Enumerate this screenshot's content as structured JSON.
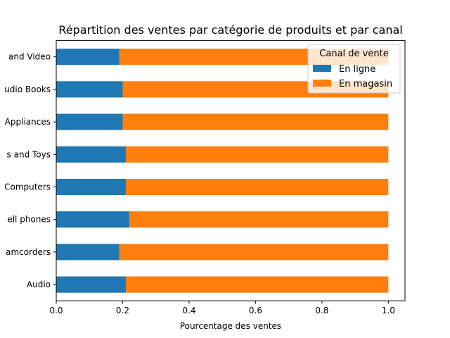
{
  "chart_data": {
    "type": "bar",
    "orientation": "horizontal",
    "stacked": true,
    "title": "Répartition des ventes par catégorie de produits et par canal",
    "xlabel": "Pourcentage des ventes",
    "ylabel": "",
    "xlim": [
      0,
      1.05
    ],
    "xticks": [
      0.0,
      0.2,
      0.4,
      0.6,
      0.8,
      1.0
    ],
    "xtick_labels": [
      "0.0",
      "0.2",
      "0.4",
      "0.6",
      "0.8",
      "1.0"
    ],
    "categories": [
      "Audio",
      "Camcorders",
      "Cell phones",
      "Computers",
      "Games and Toys",
      "Home Appliances",
      "Movies and Audio Books",
      "TV and Video"
    ],
    "category_labels_visible": [
      "Audio",
      "amcorders",
      "ell phones",
      "Computers",
      "s and Toys",
      "Appliances",
      "udio Books",
      "and Video"
    ],
    "series": [
      {
        "name": "En ligne",
        "color": "#1f77b4",
        "values": [
          0.21,
          0.19,
          0.22,
          0.21,
          0.21,
          0.2,
          0.2,
          0.19
        ]
      },
      {
        "name": "En magasin",
        "color": "#ff7f0e",
        "values": [
          0.79,
          0.81,
          0.78,
          0.79,
          0.79,
          0.8,
          0.8,
          0.81
        ]
      }
    ],
    "legend": {
      "title": "Canal de vente",
      "position": "top-right"
    },
    "grid": false
  }
}
